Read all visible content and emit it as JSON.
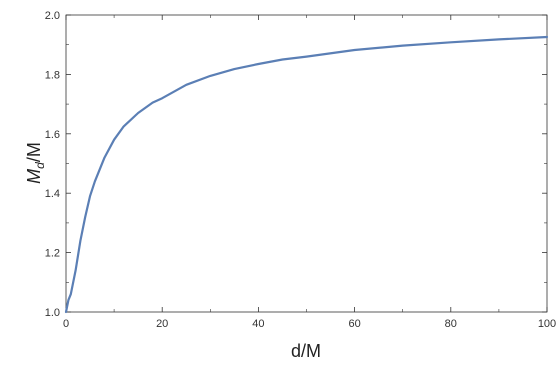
{
  "chart_data": {
    "type": "line",
    "title": "",
    "xlabel": "d/M",
    "ylabel_main": "M",
    "ylabel_sub": "d",
    "ylabel_tail": "/M",
    "xlim": [
      0,
      100
    ],
    "ylim": [
      1.0,
      2.0
    ],
    "xticks": [
      0,
      20,
      40,
      60,
      80,
      100
    ],
    "xtick_labels": [
      "0",
      "20",
      "40",
      "60",
      "80",
      "100"
    ],
    "yticks": [
      1.0,
      1.2,
      1.4,
      1.6,
      1.8,
      2.0
    ],
    "ytick_labels": [
      "1.0",
      "1.2",
      "1.4",
      "1.6",
      "1.8",
      "2.0"
    ],
    "grid": false,
    "series": [
      {
        "color": "#5b7fb5",
        "x": [
          0,
          0.5,
          1,
          2,
          3,
          4,
          5,
          6,
          8,
          10,
          12,
          15,
          18,
          20,
          25,
          30,
          35,
          40,
          45,
          50,
          60,
          70,
          80,
          90,
          100
        ],
        "y": [
          1.0,
          1.04,
          1.06,
          1.14,
          1.24,
          1.32,
          1.39,
          1.44,
          1.52,
          1.58,
          1.625,
          1.67,
          1.705,
          1.72,
          1.765,
          1.795,
          1.818,
          1.835,
          1.85,
          1.86,
          1.882,
          1.897,
          1.908,
          1.918,
          1.926
        ]
      }
    ]
  }
}
